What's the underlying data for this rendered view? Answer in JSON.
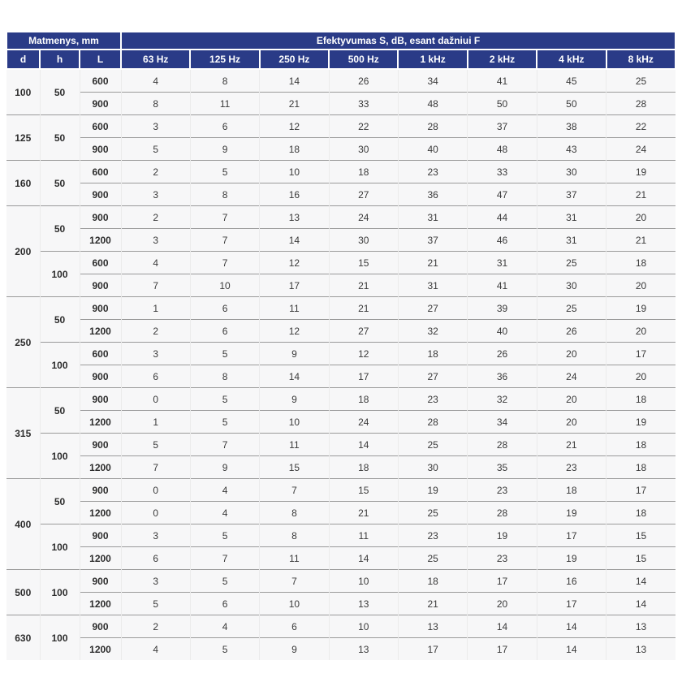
{
  "colors": {
    "header_bg": "#2a3b87",
    "header_text": "#ffffff",
    "row_bg": "#f7f7f8",
    "dim_text": "#2d2d2d",
    "value_text": "#3a3a3a",
    "separator": "#9a9a9a",
    "grid_faint": "#ebebeb"
  },
  "table": {
    "header": {
      "dimensions_label": "Matmenys, mm",
      "efficiency_label": "Efektyvumas S, dB, esant dažniui F",
      "col_d": "d",
      "col_h": "h",
      "col_l": "L",
      "freqs": [
        "63 Hz",
        "125 Hz",
        "250 Hz",
        "500 Hz",
        "1 kHz",
        "2 kHz",
        "4 kHz",
        "8 kHz"
      ]
    },
    "rows": [
      {
        "d": "100",
        "dspan": 2,
        "h": "50",
        "hspan": 2,
        "L": "600",
        "v": [
          4,
          8,
          14,
          26,
          34,
          41,
          45,
          25
        ],
        "sep": "none"
      },
      {
        "L": "900",
        "v": [
          8,
          11,
          21,
          33,
          48,
          50,
          50,
          28
        ],
        "sep": "l"
      },
      {
        "d": "125",
        "dspan": 2,
        "h": "50",
        "hspan": 2,
        "L": "600",
        "v": [
          3,
          6,
          12,
          22,
          28,
          37,
          38,
          22
        ],
        "sep": "group"
      },
      {
        "L": "900",
        "v": [
          5,
          9,
          18,
          30,
          40,
          48,
          43,
          24
        ],
        "sep": "l"
      },
      {
        "d": "160",
        "dspan": 2,
        "h": "50",
        "hspan": 2,
        "L": "600",
        "v": [
          2,
          5,
          10,
          18,
          23,
          33,
          30,
          19
        ],
        "sep": "group"
      },
      {
        "L": "900",
        "v": [
          3,
          8,
          16,
          27,
          36,
          47,
          37,
          21
        ],
        "sep": "l"
      },
      {
        "d": "200",
        "dspan": 4,
        "h": "50",
        "hspan": 2,
        "L": "900",
        "v": [
          2,
          7,
          13,
          24,
          31,
          44,
          31,
          20
        ],
        "sep": "group"
      },
      {
        "L": "1200",
        "v": [
          3,
          7,
          14,
          30,
          37,
          46,
          31,
          21
        ],
        "sep": "l"
      },
      {
        "h": "100",
        "hspan": 2,
        "L": "600",
        "v": [
          4,
          7,
          12,
          15,
          21,
          31,
          25,
          18
        ],
        "sep": "h"
      },
      {
        "L": "900",
        "v": [
          7,
          10,
          17,
          21,
          31,
          41,
          30,
          20
        ],
        "sep": "l"
      },
      {
        "d": "250",
        "dspan": 4,
        "h": "50",
        "hspan": 2,
        "L": "900",
        "v": [
          1,
          6,
          11,
          21,
          27,
          39,
          25,
          19
        ],
        "sep": "group"
      },
      {
        "L": "1200",
        "v": [
          2,
          6,
          12,
          27,
          32,
          40,
          26,
          20
        ],
        "sep": "l"
      },
      {
        "h": "100",
        "hspan": 2,
        "L": "600",
        "v": [
          3,
          5,
          9,
          12,
          18,
          26,
          20,
          17
        ],
        "sep": "h"
      },
      {
        "L": "900",
        "v": [
          6,
          8,
          14,
          17,
          27,
          36,
          24,
          20
        ],
        "sep": "l"
      },
      {
        "d": "315",
        "dspan": 4,
        "h": "50",
        "hspan": 2,
        "L": "900",
        "v": [
          0,
          5,
          9,
          18,
          23,
          32,
          20,
          18
        ],
        "sep": "group"
      },
      {
        "L": "1200",
        "v": [
          1,
          5,
          10,
          24,
          28,
          34,
          20,
          19
        ],
        "sep": "l"
      },
      {
        "h": "100",
        "hspan": 2,
        "L": "900",
        "v": [
          5,
          7,
          11,
          14,
          25,
          28,
          21,
          18
        ],
        "sep": "h"
      },
      {
        "L": "1200",
        "v": [
          7,
          9,
          15,
          18,
          30,
          35,
          23,
          18
        ],
        "sep": "l"
      },
      {
        "d": "400",
        "dspan": 4,
        "h": "50",
        "hspan": 2,
        "L": "900",
        "v": [
          0,
          4,
          7,
          15,
          19,
          23,
          18,
          17
        ],
        "sep": "group"
      },
      {
        "L": "1200",
        "v": [
          0,
          4,
          8,
          21,
          25,
          28,
          19,
          18
        ],
        "sep": "l"
      },
      {
        "h": "100",
        "hspan": 2,
        "L": "900",
        "v": [
          3,
          5,
          8,
          11,
          23,
          19,
          17,
          15
        ],
        "sep": "h"
      },
      {
        "L": "1200",
        "v": [
          6,
          7,
          11,
          14,
          25,
          23,
          19,
          15
        ],
        "sep": "l"
      },
      {
        "d": "500",
        "dspan": 2,
        "h": "100",
        "hspan": 2,
        "L": "900",
        "v": [
          3,
          5,
          7,
          10,
          18,
          17,
          16,
          14
        ],
        "sep": "group"
      },
      {
        "L": "1200",
        "v": [
          5,
          6,
          10,
          13,
          21,
          20,
          17,
          14
        ],
        "sep": "l"
      },
      {
        "d": "630",
        "dspan": 2,
        "h": "100",
        "hspan": 2,
        "L": "900",
        "v": [
          2,
          4,
          6,
          10,
          13,
          14,
          14,
          13
        ],
        "sep": "group"
      },
      {
        "L": "1200",
        "v": [
          4,
          5,
          9,
          13,
          17,
          17,
          14,
          13
        ],
        "sep": "l"
      }
    ]
  }
}
